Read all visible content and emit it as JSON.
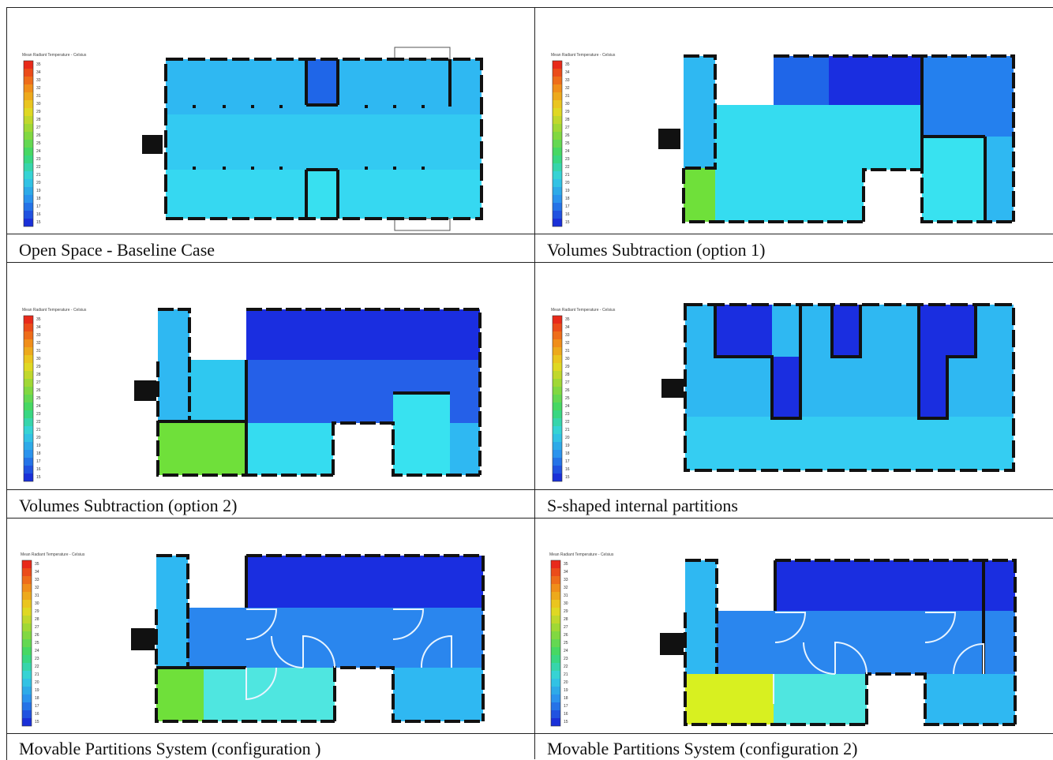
{
  "legend_title": "Mean Radiant Temperature - Celsius",
  "legend_ticks": [
    "35",
    "34",
    "33",
    "32",
    "31",
    "30",
    "29",
    "28",
    "27",
    "26",
    "25",
    "24",
    "23",
    "22",
    "21",
    "20",
    "19",
    "18",
    "17",
    "16",
    "15"
  ],
  "panels": [
    {
      "caption": "Open Space - Baseline Case"
    },
    {
      "caption": "Volumes Subtraction (option 1)"
    },
    {
      "caption": "Volumes Subtraction (option 2)"
    },
    {
      "caption": "S-shaped internal partitions"
    },
    {
      "caption": "Movable Partitions System (configuration )"
    },
    {
      "caption": "Movable Partitions System (configuration 2)"
    }
  ],
  "colors": {
    "deep_blue": "#1a2ee0",
    "mid_blue": "#2d8ef0",
    "sky": "#2fb8f2",
    "cyan": "#35e0f0",
    "green": "#6fe03a",
    "yellow": "#d8f020",
    "wall": "#111111"
  }
}
